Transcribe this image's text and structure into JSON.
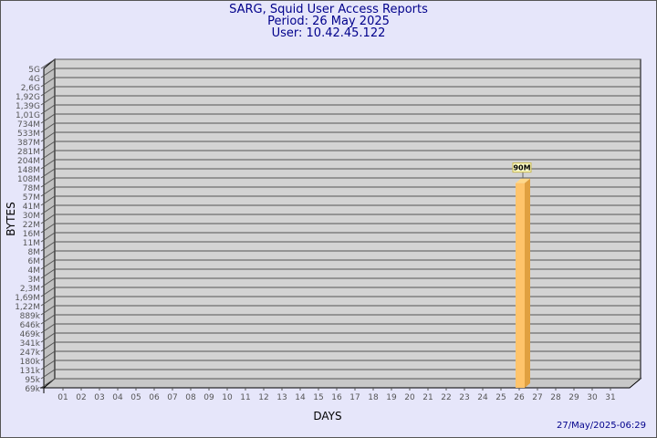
{
  "header": {
    "title": "SARG, Squid User Access Reports",
    "period": "Period: 26 May 2025",
    "user": "User: 10.42.45.122"
  },
  "footer": {
    "timestamp": "27/May/2025-06:29"
  },
  "colors": {
    "background": "#e6e6fa",
    "plot": "#d3d3d3",
    "bar": "#ffc46b",
    "bar_side": "#e0a040",
    "title": "#00008b"
  },
  "chart_data": {
    "type": "bar",
    "xlabel": "DAYS",
    "ylabel": "BYTES",
    "yscale": "log",
    "grid": true,
    "yticks": [
      "5G",
      "4G",
      "2,6G",
      "1,92G",
      "1,39G",
      "1,01G",
      "734M",
      "533M",
      "387M",
      "281M",
      "204M",
      "148M",
      "108M",
      "78M",
      "57M",
      "41M",
      "30M",
      "22M",
      "16M",
      "11M",
      "8M",
      "6M",
      "4M",
      "3M",
      "2,3M",
      "1,69M",
      "1,22M",
      "889k",
      "646k",
      "469k",
      "341k",
      "247k",
      "180k",
      "131k",
      "95k",
      "69k"
    ],
    "categories": [
      "01",
      "02",
      "03",
      "04",
      "05",
      "06",
      "07",
      "08",
      "09",
      "10",
      "11",
      "12",
      "13",
      "14",
      "15",
      "16",
      "17",
      "18",
      "19",
      "20",
      "21",
      "22",
      "23",
      "24",
      "25",
      "26",
      "27",
      "28",
      "29",
      "30",
      "31"
    ],
    "values": [
      0,
      0,
      0,
      0,
      0,
      0,
      0,
      0,
      0,
      0,
      0,
      0,
      0,
      0,
      0,
      0,
      0,
      0,
      0,
      0,
      0,
      0,
      0,
      0,
      0,
      90000000,
      0,
      0,
      0,
      0,
      0
    ],
    "data_labels": {
      "26": "90M"
    }
  }
}
